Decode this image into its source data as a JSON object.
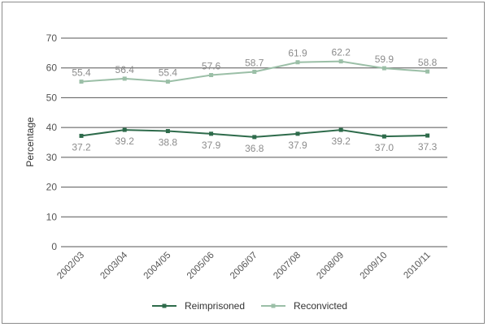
{
  "chart_data": {
    "type": "line",
    "title": "",
    "xlabel": "",
    "ylabel": "Percentage",
    "ylim": [
      0,
      70
    ],
    "y_ticks": [
      "0",
      "10",
      "20",
      "30",
      "40",
      "50",
      "60",
      "70"
    ],
    "y_tick_values": [
      0,
      10,
      20,
      30,
      40,
      50,
      60,
      70
    ],
    "categories": [
      "2002/03",
      "2003/04",
      "2004/05",
      "2005/06",
      "2006/07",
      "2007/08",
      "2008/09",
      "2009/10",
      "2010/11"
    ],
    "grid": true,
    "legend_position": "bottom",
    "series": [
      {
        "name": "Reimprisoned",
        "color": "#2e6b4b",
        "label_position": "below",
        "values": [
          37.2,
          39.2,
          38.8,
          37.9,
          36.8,
          37.9,
          39.2,
          37.0,
          37.3
        ],
        "labels": [
          "37.2",
          "39.2",
          "38.8",
          "37.9",
          "36.8",
          "37.9",
          "39.2",
          "37.0",
          "37.3"
        ]
      },
      {
        "name": "Reconvicted",
        "color": "#9bbfa7",
        "label_position": "above",
        "values": [
          55.4,
          56.4,
          55.4,
          57.6,
          58.7,
          61.9,
          62.2,
          59.9,
          58.8
        ],
        "labels": [
          "55.4",
          "56.4",
          "55.4",
          "57.6",
          "58.7",
          "61.9",
          "62.2",
          "59.9",
          "58.8"
        ]
      }
    ],
    "colors": {
      "axis_text": "#555555",
      "data_label": "#8c8c8c",
      "gridline": "#555555"
    }
  }
}
